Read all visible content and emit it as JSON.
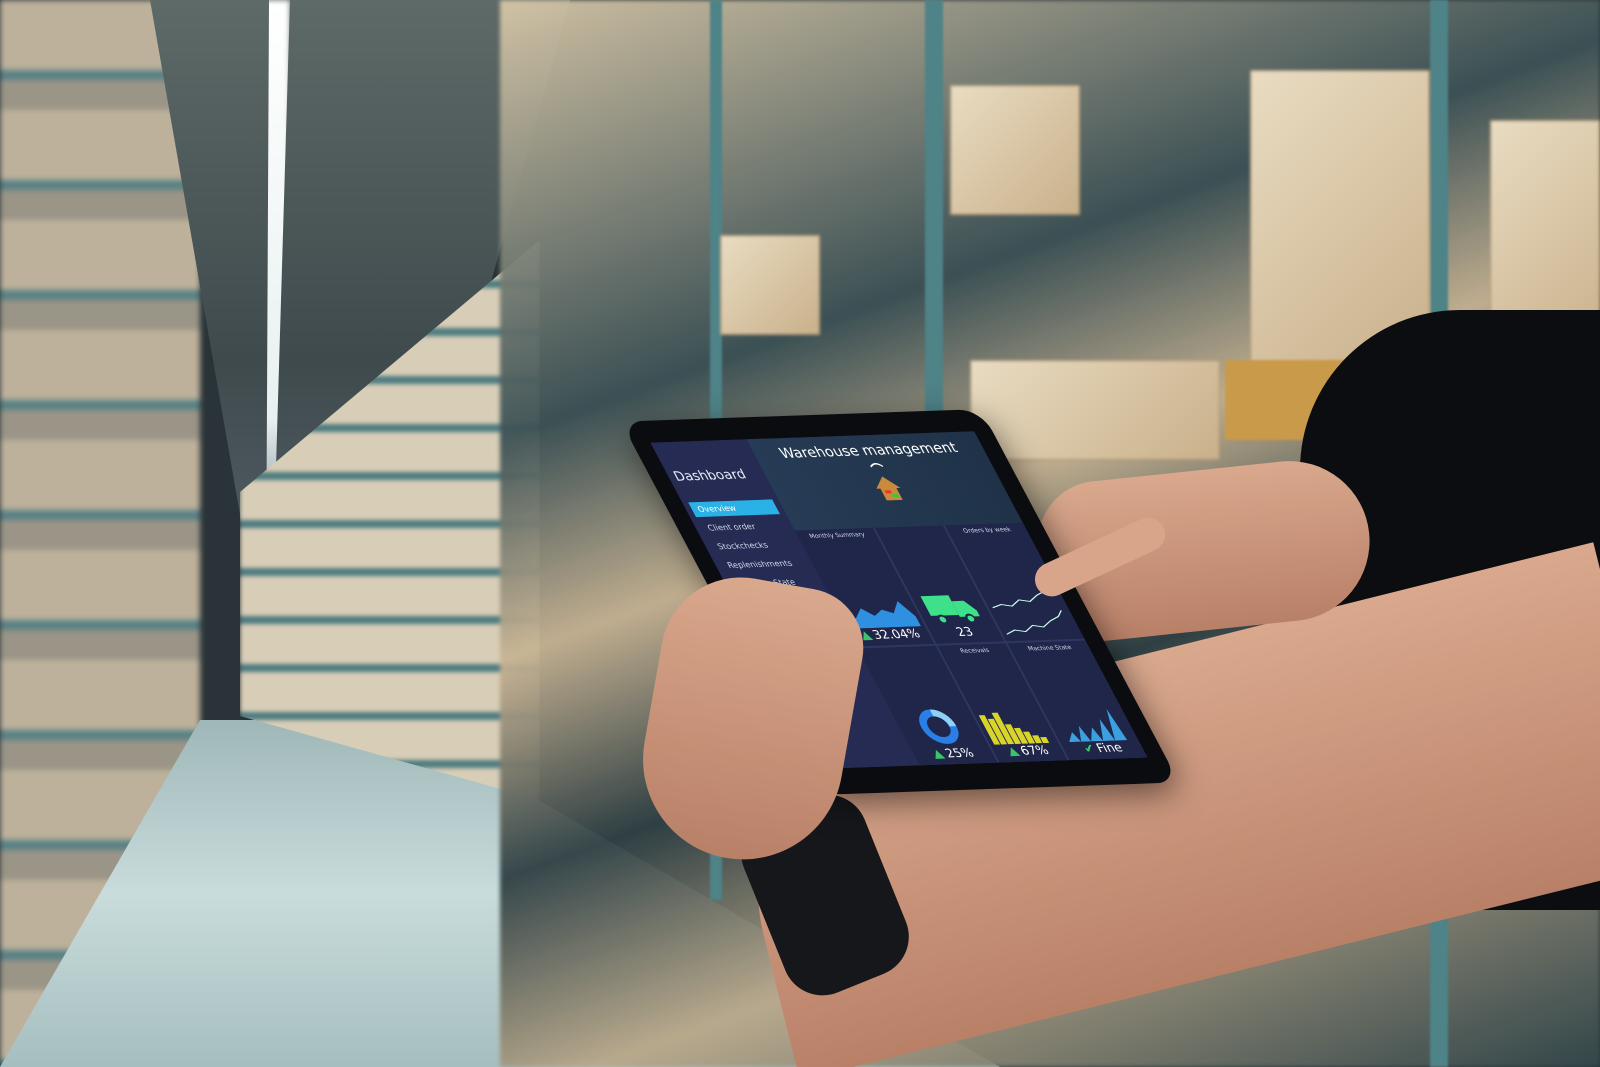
{
  "dashboard": {
    "title": "Warehouse management",
    "sidebar_title": "Dashboard",
    "menu": [
      "Overview",
      "Client order",
      "Stockchecks",
      "Replenishments",
      "Machine State"
    ],
    "active_menu": "Overview",
    "panels": {
      "monthly_summary": {
        "label": "Monthly Summary",
        "value": "32.04%",
        "trend": "up"
      },
      "trucks": {
        "value": "23"
      },
      "orders_by_week": {
        "label": "Orders by week"
      },
      "donut": {
        "value": "25%",
        "trend": "up",
        "fraction": 0.25
      },
      "receivals": {
        "label": "Receivals",
        "value": "67%",
        "trend": "up"
      },
      "machine_state": {
        "label": "Machine State",
        "value": "Fine",
        "status": "check"
      }
    },
    "colors": {
      "accent": "#2ab2e6",
      "up": "#3bc46a",
      "truck": "#3ee08a",
      "bars": "#d8d42a",
      "bg": "#1c2244"
    }
  }
}
